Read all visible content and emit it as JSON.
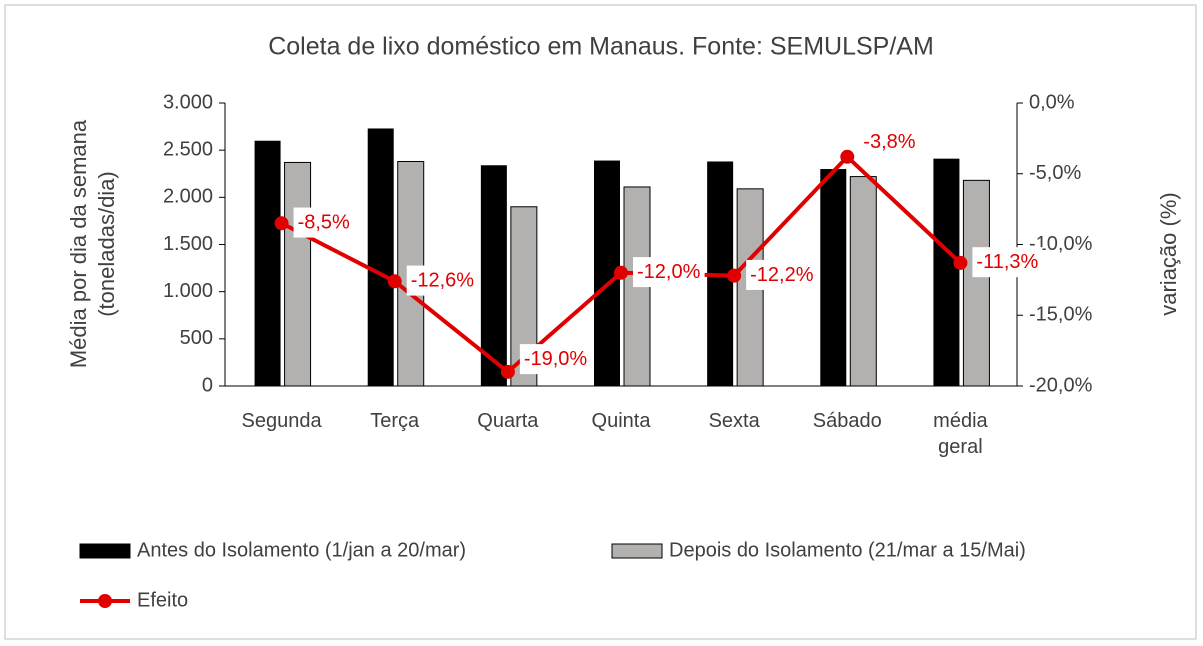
{
  "chart_data": {
    "type": "bar_line",
    "title": "Coleta de lixo doméstico em Manaus. Fonte: SEMULSP/AM",
    "y_label": "Média por dia da semana (toneladas/dia)",
    "y2_label": "variação (%)",
    "categories": [
      "Segunda",
      "Terça",
      "Quarta",
      "Quinta",
      "Sexta",
      "Sábado",
      "média geral"
    ],
    "ylim": [
      0,
      3000
    ],
    "yticks": [
      {
        "value": 0,
        "label": "0"
      },
      {
        "value": 500,
        "label": "500"
      },
      {
        "value": 1000,
        "label": "1.000"
      },
      {
        "value": 1500,
        "label": "1.500"
      },
      {
        "value": 2000,
        "label": "2.000"
      },
      {
        "value": 2500,
        "label": "2.500"
      },
      {
        "value": 3000,
        "label": "3.000"
      }
    ],
    "y2lim": [
      -20,
      0
    ],
    "y2ticks": [
      {
        "value": -20,
        "label": "-20,0%"
      },
      {
        "value": -15,
        "label": "-15,0%"
      },
      {
        "value": -10,
        "label": "-10,0%"
      },
      {
        "value": -5,
        "label": "-5,0%"
      },
      {
        "value": 0,
        "label": "0,0%"
      }
    ],
    "series": [
      {
        "name": "Antes do Isolamento (1/jan a 20/mar)",
        "type": "bar",
        "color": "#000000",
        "values": [
          2600,
          2730,
          2340,
          2390,
          2380,
          2300,
          2410
        ]
      },
      {
        "name": "Depois do Isolamento (21/mar a 15/Mai)",
        "type": "bar",
        "color": "#b3b0b0",
        "values": [
          2370,
          2380,
          1900,
          2110,
          2090,
          2220,
          2180
        ]
      },
      {
        "name": "Efeito",
        "type": "line",
        "axis": "y2",
        "color": "#e00000",
        "values": [
          -8.5,
          -12.6,
          -19.0,
          -12.0,
          -12.2,
          -3.8,
          -11.3
        ],
        "value_labels": [
          "-8,5%",
          "-12,6%",
          "-19,0%",
          "-12,0%",
          "-12,2%",
          "-3,8%",
          "-11,3%"
        ]
      }
    ],
    "legend": "bottom"
  }
}
